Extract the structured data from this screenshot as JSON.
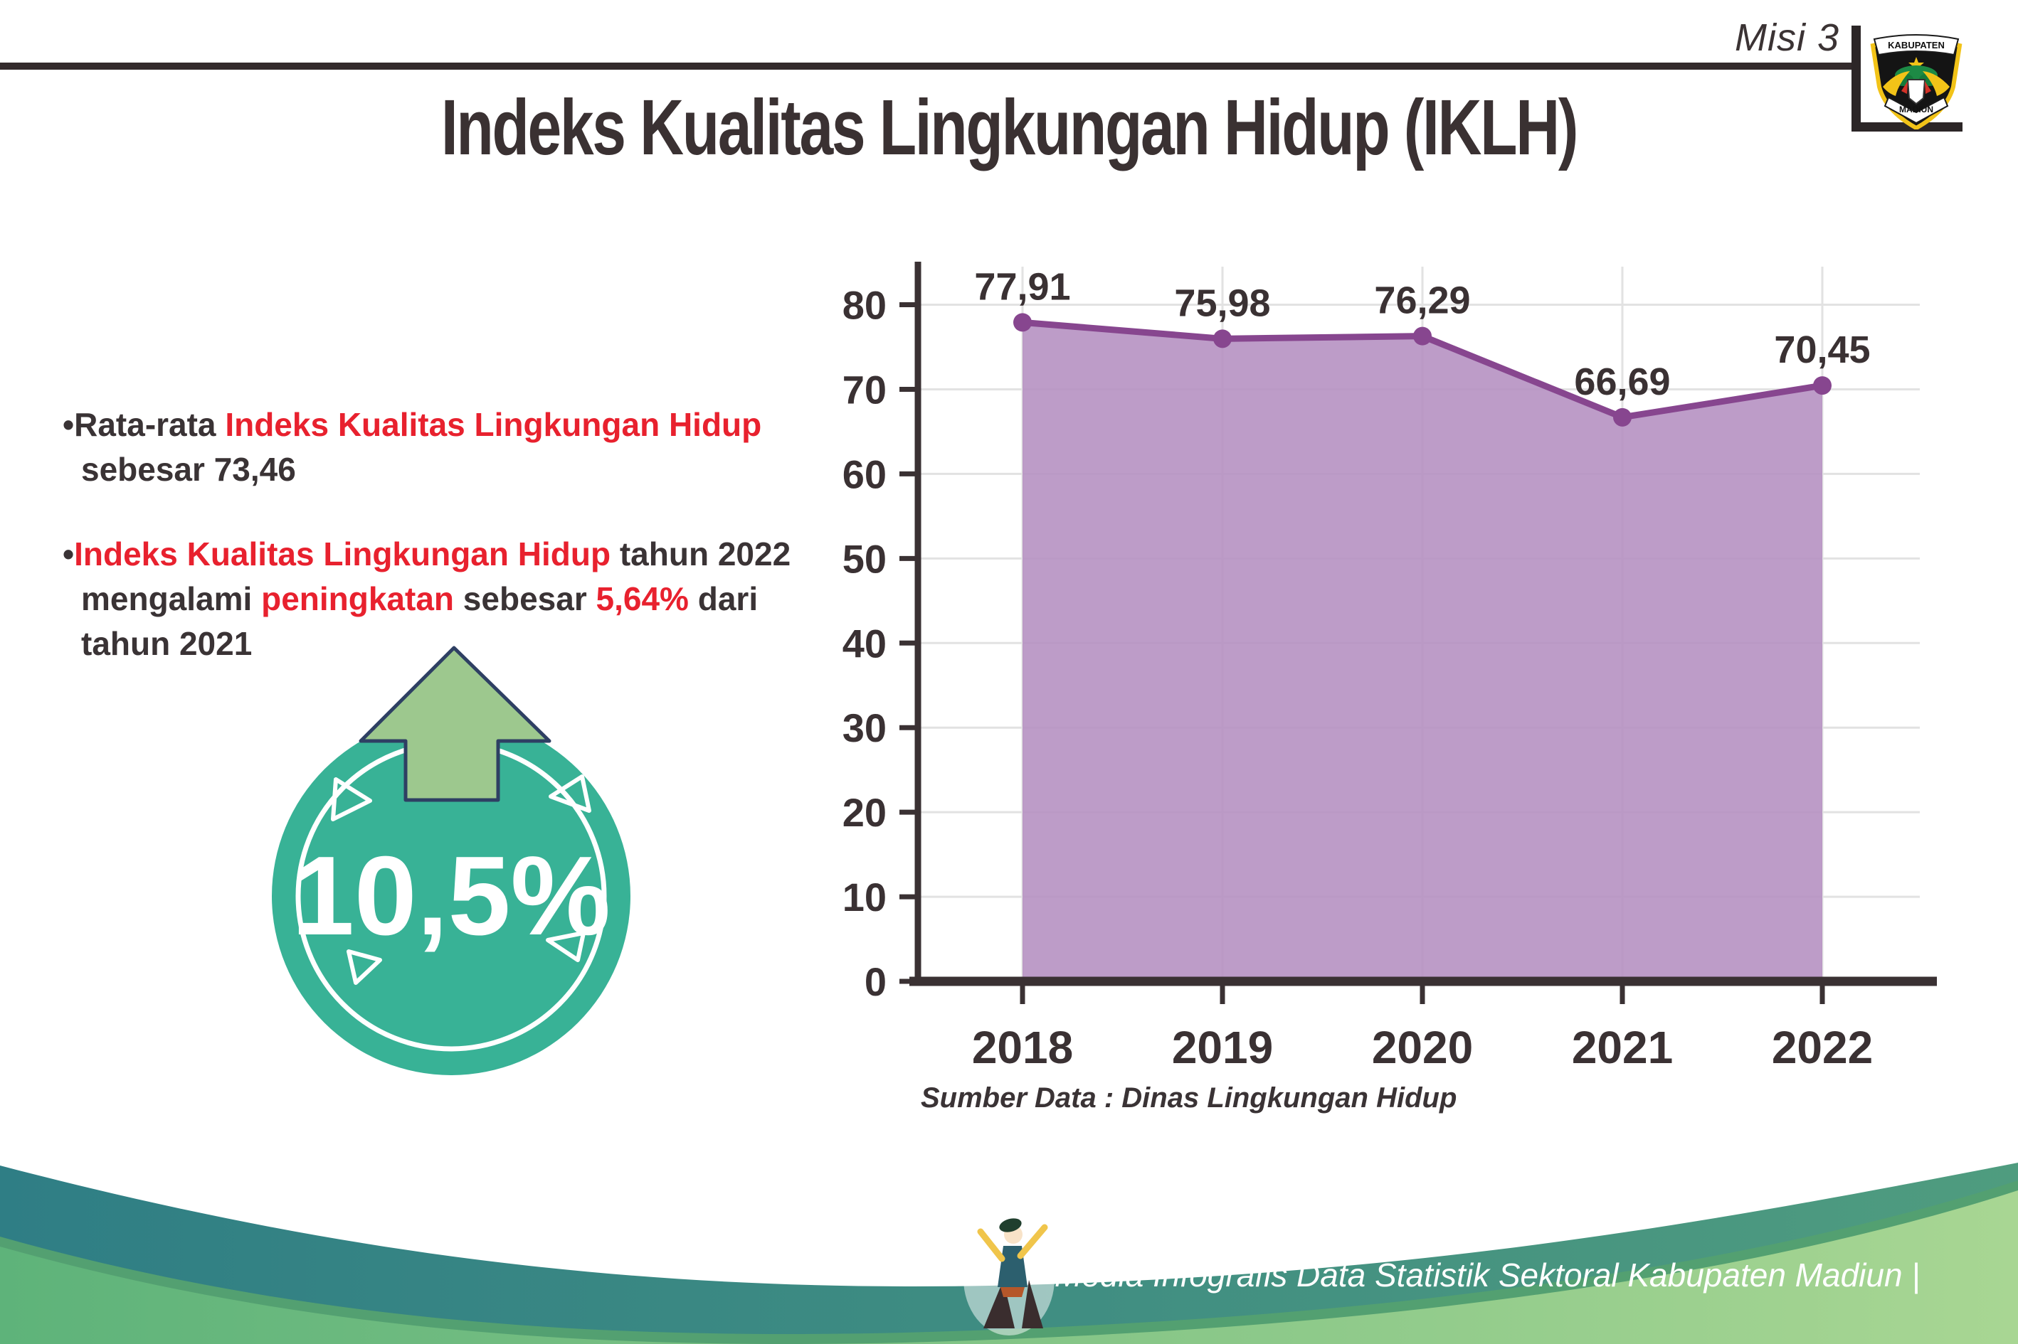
{
  "header": {
    "misi_label": "Misi 3",
    "title": "Indeks Kualitas Lingkungan Hidup (IKLH)"
  },
  "logo": {
    "top_text": "KABUPATEN",
    "bottom_text": "MADIUN"
  },
  "bullets": [
    {
      "lines": [
        [
          {
            "text": "Rata-rata ",
            "color": "dark"
          },
          {
            "text": "Indeks Kualitas Lingkungan Hidup",
            "color": "red"
          }
        ],
        [
          {
            "text": "sebesar 73,46",
            "color": "dark"
          }
        ]
      ]
    },
    {
      "lines": [
        [
          {
            "text": "Indeks Kualitas Lingkungan Hidup",
            "color": "red"
          },
          {
            "text": " tahun 2022",
            "color": "dark"
          }
        ],
        [
          {
            "text": "mengalami ",
            "color": "dark"
          },
          {
            "text": "peningkatan",
            "color": "red"
          },
          {
            "text": " sebesar ",
            "color": "dark"
          },
          {
            "text": "5,64%",
            "color": "red"
          },
          {
            "text": " dari",
            "color": "dark"
          }
        ],
        [
          {
            "text": "tahun 2021",
            "color": "dark"
          }
        ]
      ]
    }
  ],
  "badge": {
    "value": "10,5%"
  },
  "chart_data": {
    "type": "area",
    "title": "",
    "xlabel": "",
    "ylabel": "",
    "categories": [
      "2018",
      "2019",
      "2020",
      "2021",
      "2022"
    ],
    "values": [
      77.91,
      75.98,
      76.29,
      66.69,
      70.45
    ],
    "point_labels": [
      "77,91",
      "75,98",
      "76,29",
      "66,69",
      "70,45"
    ],
    "ylim": [
      0,
      84.5
    ],
    "yticks": [
      0,
      10,
      20,
      30,
      40,
      50,
      60,
      70,
      80
    ],
    "grid": true,
    "legend_position": "none",
    "source_note": "Sumber Data : Dinas Lingkungan Hidup",
    "fill_color": "#b48ec0",
    "line_color": "#87468f",
    "marker_color": "#87468f",
    "axis_color": "#3a3133",
    "grid_color": "#e2e2e2",
    "label_color": "#3a3133"
  },
  "footer": {
    "credit": "Media Infografis Data Statistik Sektoral Kabupaten Madiun |"
  },
  "colors": {
    "dark_text": "#3a3335",
    "red_text": "#e8212e",
    "badge_teal": "#38b296",
    "badge_arrow_green": "#9dc88e",
    "badge_arrow_outline": "#2e3f63",
    "wave_teal_start": "#2f7e85",
    "wave_teal_end": "#4f9c7f",
    "wave_green_start": "#5eb37a",
    "wave_green_end": "#a8d693"
  }
}
